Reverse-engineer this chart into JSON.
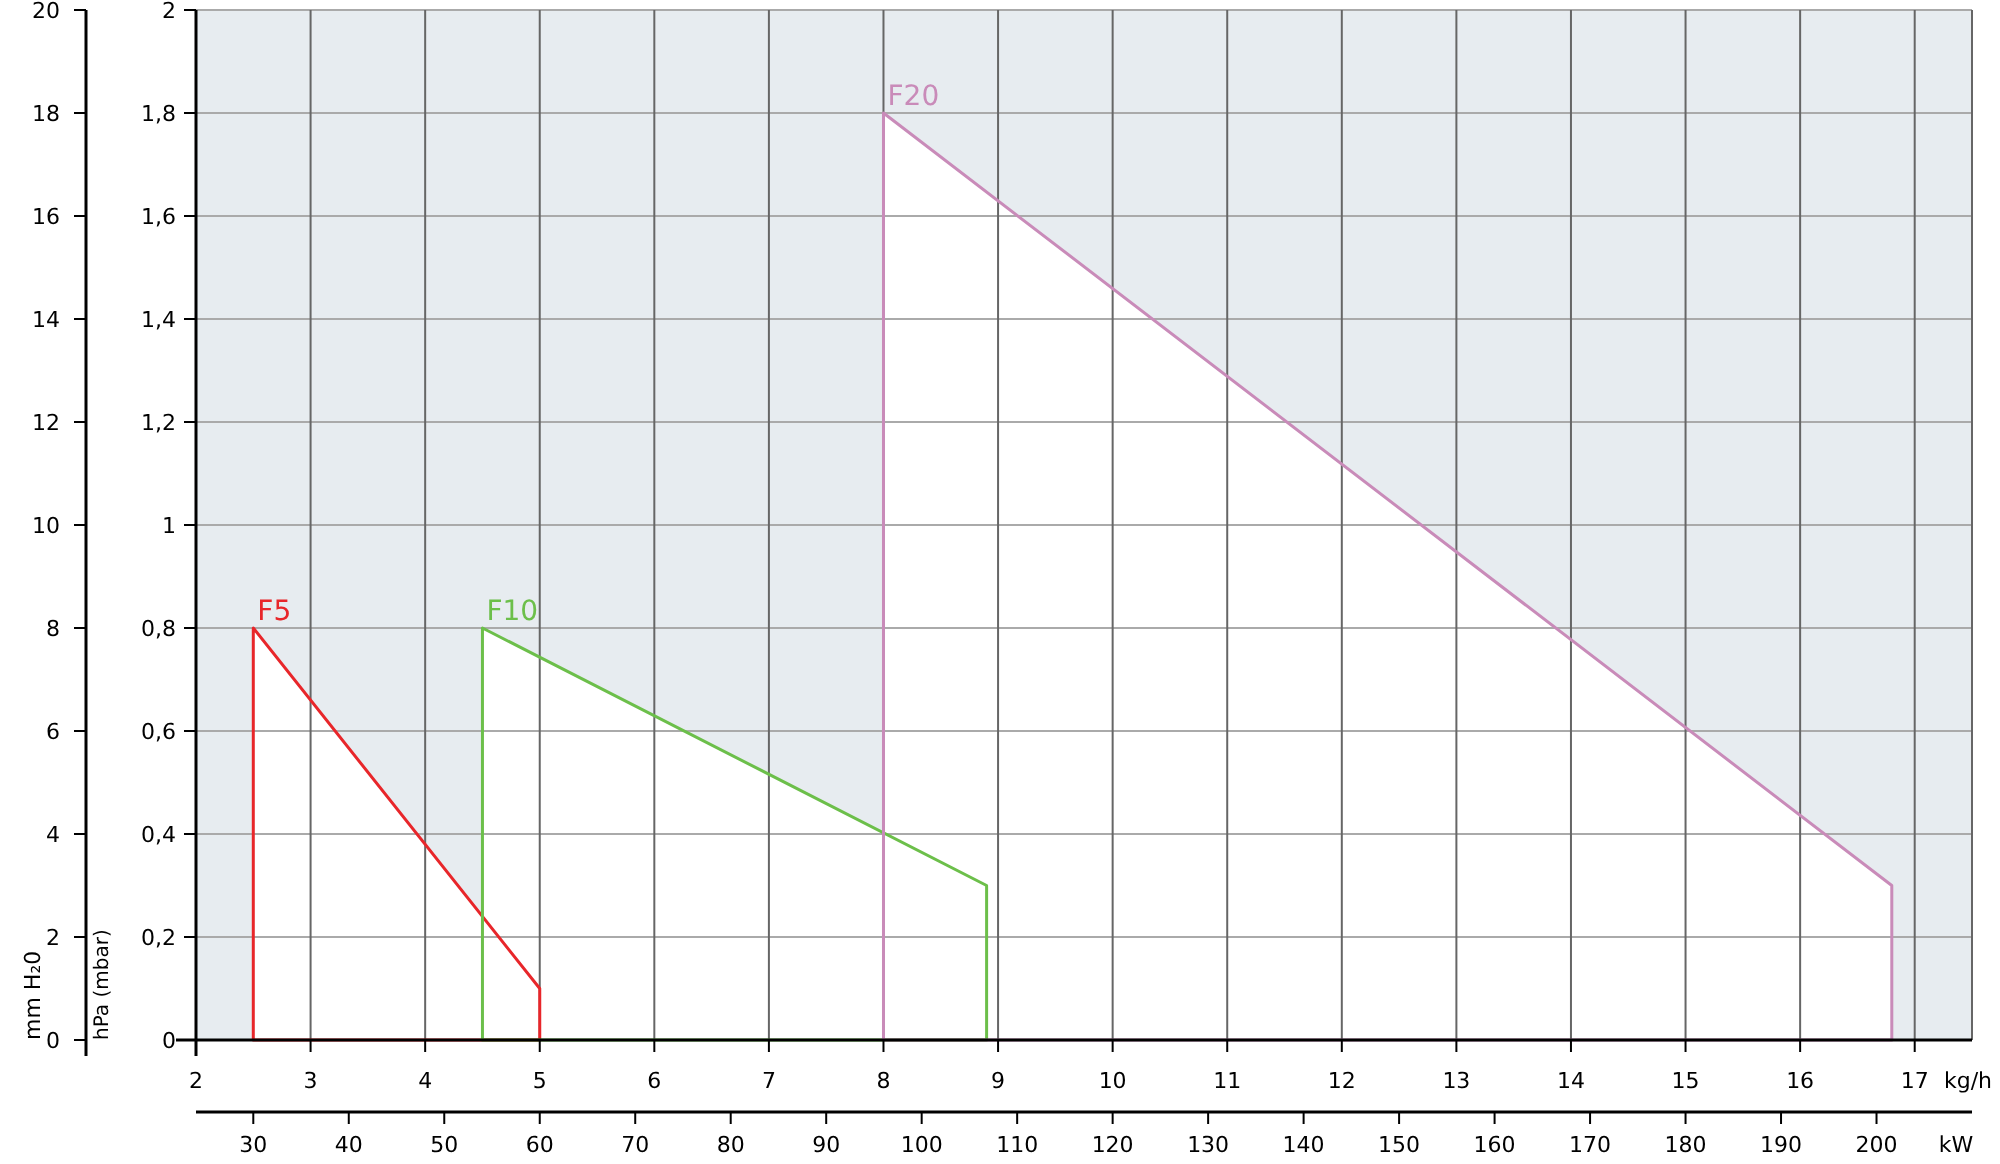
{
  "chart_data": {
    "type": "area",
    "xlabel": "kg/h",
    "x2label": "kW",
    "ylabel": "hPa (mbar)",
    "y2label": "mm H₂0",
    "xlim": [
      2,
      17.5
    ],
    "xticks": [
      2,
      3,
      4,
      5,
      6,
      7,
      8,
      9,
      10,
      11,
      12,
      13,
      14,
      15,
      16,
      17
    ],
    "x2lim": [
      24,
      210
    ],
    "x2ticks": [
      30,
      40,
      50,
      60,
      70,
      80,
      90,
      100,
      110,
      120,
      130,
      140,
      150,
      160,
      170,
      180,
      190,
      200
    ],
    "ylim": [
      0,
      2
    ],
    "yticks": [
      0,
      {
        "value": 0.2,
        "label": "0,2"
      },
      {
        "value": 0.4,
        "label": "0,4"
      },
      {
        "value": 0.6,
        "label": "0,6"
      },
      {
        "value": 0.8,
        "label": "0,8"
      },
      1,
      {
        "value": 1.2,
        "label": "1,2"
      },
      {
        "value": 1.4,
        "label": "1,4"
      },
      {
        "value": 1.6,
        "label": "1,6"
      },
      {
        "value": 1.8,
        "label": "1,8"
      },
      2
    ],
    "y2lim": [
      0,
      20
    ],
    "y2ticks": [
      0,
      2,
      4,
      6,
      8,
      10,
      12,
      14,
      16,
      18,
      20
    ],
    "grid": true,
    "series": [
      {
        "name": "F5",
        "color": "#e8262a",
        "x": [
          2.5,
          2.5,
          5,
          5
        ],
        "values": [
          0,
          0.8,
          0.1,
          0
        ]
      },
      {
        "name": "F10",
        "color": "#6cbf4a",
        "x": [
          4.5,
          4.5,
          8.9,
          8.9
        ],
        "values": [
          0,
          0.8,
          0.3,
          0
        ]
      },
      {
        "name": "F20",
        "color": "#c98bb9",
        "x": [
          8,
          8,
          16.8,
          16.8
        ],
        "values": [
          0,
          1.8,
          0.3,
          0
        ]
      }
    ]
  }
}
